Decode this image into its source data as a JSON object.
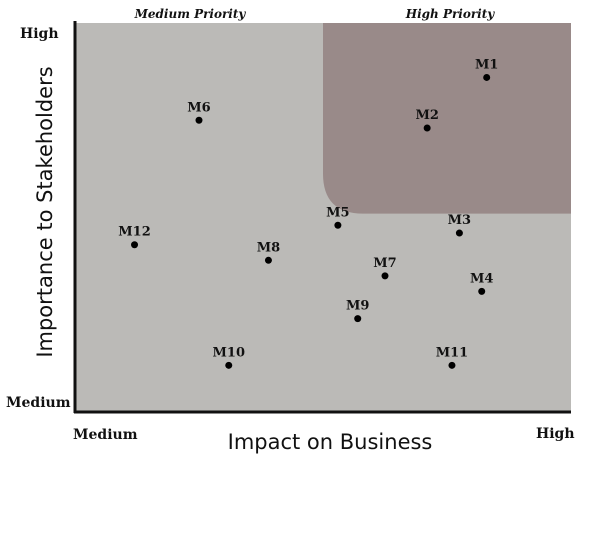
{
  "chart_data": {
    "type": "scatter",
    "x_axis": {
      "title": "Impact on Business",
      "tick_labels": [
        "Medium",
        "High"
      ]
    },
    "y_axis": {
      "title": "Importance to Stakeholders",
      "tick_labels": [
        "Medium",
        "High"
      ]
    },
    "xlim": [
      0,
      10
    ],
    "ylim": [
      0,
      10
    ],
    "grid": false,
    "region_labels": {
      "medium": "Medium Priority",
      "high": "High Priority"
    },
    "high_priority_region": {
      "x_min": 5.0,
      "y_min": 5.1
    },
    "colors": {
      "plot_background": "#bbbab7",
      "high_priority_region": "#998a89",
      "point": "#000000"
    },
    "points": [
      {
        "label": "M1",
        "x": 8.3,
        "y": 8.6
      },
      {
        "label": "M2",
        "x": 7.1,
        "y": 7.3
      },
      {
        "label": "M3",
        "x": 7.75,
        "y": 4.6
      },
      {
        "label": "M4",
        "x": 8.2,
        "y": 3.1
      },
      {
        "label": "M5",
        "x": 5.3,
        "y": 4.8
      },
      {
        "label": "M6",
        "x": 2.5,
        "y": 7.5
      },
      {
        "label": "M7",
        "x": 6.25,
        "y": 3.5
      },
      {
        "label": "M8",
        "x": 3.9,
        "y": 3.9
      },
      {
        "label": "M9",
        "x": 5.7,
        "y": 2.4
      },
      {
        "label": "M10",
        "x": 3.1,
        "y": 1.2
      },
      {
        "label": "M11",
        "x": 7.6,
        "y": 1.2
      },
      {
        "label": "M12",
        "x": 1.2,
        "y": 4.3
      }
    ]
  }
}
